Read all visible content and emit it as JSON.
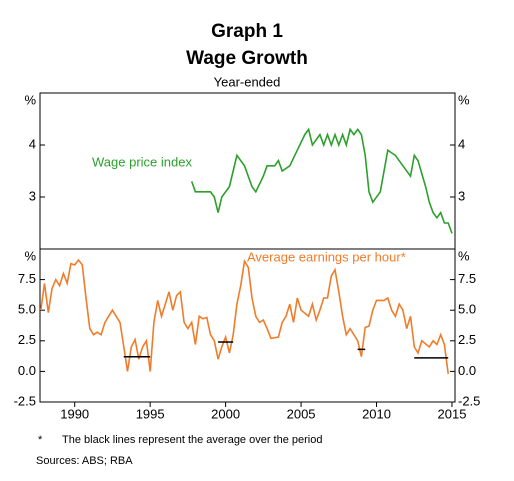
{
  "header": {
    "title": "Graph 1",
    "subtitle": "Wage Growth",
    "note": "Year-ended"
  },
  "chart_data": [
    {
      "type": "line",
      "y_unit": "%",
      "xlim": [
        1987.7,
        2015.2
      ],
      "ylim": [
        2,
        5
      ],
      "yticks": [
        3,
        4
      ],
      "series": [
        {
          "name": "Wage price index",
          "color": "#2ca02c",
          "x": [
            1997.75,
            1998,
            1998.5,
            1999,
            1999.25,
            1999.5,
            1999.75,
            2000.25,
            2000.75,
            2001.25,
            2001.75,
            2002,
            2002.5,
            2002.75,
            2003.25,
            2003.5,
            2003.75,
            2004.25,
            2004.75,
            2005.25,
            2005.5,
            2005.75,
            2006.25,
            2006.5,
            2006.75,
            2007,
            2007.25,
            2007.5,
            2007.75,
            2008,
            2008.25,
            2008.5,
            2008.75,
            2009,
            2009.25,
            2009.5,
            2009.75,
            2010.25,
            2010.75,
            2011.25,
            2011.75,
            2012.25,
            2012.5,
            2012.75,
            2013.25,
            2013.5,
            2013.75,
            2014,
            2014.25,
            2014.5,
            2014.75,
            2015
          ],
          "values": [
            3.3,
            3.1,
            3.1,
            3.1,
            3.0,
            2.7,
            3.0,
            3.2,
            3.8,
            3.6,
            3.2,
            3.1,
            3.4,
            3.6,
            3.6,
            3.7,
            3.5,
            3.6,
            3.9,
            4.2,
            4.3,
            4.0,
            4.2,
            4.0,
            4.2,
            4.0,
            4.2,
            4.0,
            4.2,
            4.0,
            4.3,
            4.2,
            4.3,
            4.2,
            3.8,
            3.1,
            2.9,
            3.1,
            3.9,
            3.8,
            3.6,
            3.4,
            3.8,
            3.7,
            3.2,
            2.9,
            2.7,
            2.6,
            2.7,
            2.5,
            2.5,
            2.3
          ]
        }
      ]
    },
    {
      "type": "line",
      "y_unit": "%",
      "xlim": [
        1987.7,
        2015.2
      ],
      "ylim": [
        -2.5,
        10
      ],
      "yticks": [
        -2.5,
        {
          "value": 0,
          "label": "0.0"
        },
        2.5,
        {
          "value": 5,
          "label": "5.0"
        },
        7.5
      ],
      "xticks": [
        1990,
        1995,
        2000,
        2005,
        2010,
        2015
      ],
      "series": [
        {
          "name": "Average earnings per hour*",
          "color": "#f07c2a",
          "x": [
            1987.75,
            1988,
            1988.25,
            1988.5,
            1988.75,
            1989,
            1989.25,
            1989.5,
            1989.75,
            1990,
            1990.25,
            1990.5,
            1990.75,
            1991,
            1991.25,
            1991.5,
            1991.75,
            1992,
            1992.5,
            1992.75,
            1993,
            1993.25,
            1993.5,
            1993.75,
            1994,
            1994.25,
            1994.5,
            1994.75,
            1995,
            1995.25,
            1995.5,
            1995.75,
            1996,
            1996.25,
            1996.5,
            1996.75,
            1997,
            1997.25,
            1997.5,
            1997.75,
            1998,
            1998.25,
            1998.5,
            1998.75,
            1999,
            1999.25,
            1999.5,
            1999.75,
            2000,
            2000.25,
            2000.5,
            2000.75,
            2001,
            2001.25,
            2001.5,
            2001.75,
            2002,
            2002.25,
            2002.5,
            2002.75,
            2003,
            2003.5,
            2003.75,
            2004,
            2004.25,
            2004.5,
            2004.75,
            2005,
            2005.5,
            2005.75,
            2006,
            2006.25,
            2006.5,
            2006.75,
            2007,
            2007.25,
            2007.5,
            2007.75,
            2008,
            2008.25,
            2008.5,
            2008.75,
            2009,
            2009.25,
            2009.5,
            2009.75,
            2010,
            2010.5,
            2010.75,
            2011,
            2011.25,
            2011.5,
            2011.75,
            2012,
            2012.25,
            2012.5,
            2012.75,
            2013,
            2013.5,
            2013.75,
            2014,
            2014.25,
            2014.5,
            2014.75
          ],
          "values": [
            5.0,
            7.2,
            4.8,
            6.8,
            7.5,
            7.0,
            8.0,
            7.2,
            8.8,
            8.7,
            9.1,
            8.7,
            6.0,
            3.5,
            3.0,
            3.2,
            3.0,
            4.0,
            5.0,
            4.5,
            4.0,
            2.0,
            0.0,
            2.0,
            2.6,
            1.0,
            2.0,
            2.5,
            0.0,
            4.0,
            5.8,
            4.5,
            5.5,
            6.5,
            5.0,
            6.2,
            6.5,
            4.0,
            3.5,
            4.0,
            2.2,
            4.5,
            4.3,
            4.4,
            3.0,
            2.5,
            1.0,
            2.0,
            2.8,
            1.5,
            3.0,
            5.5,
            7.0,
            9.0,
            8.5,
            6.0,
            4.5,
            4.0,
            4.2,
            3.5,
            2.7,
            2.8,
            4.0,
            4.5,
            5.5,
            4.0,
            6.0,
            5.0,
            4.5,
            5.5,
            4.2,
            5.0,
            6.0,
            6.0,
            7.8,
            8.3,
            6.5,
            4.5,
            3.0,
            3.5,
            3.0,
            2.5,
            1.2,
            3.6,
            3.7,
            5.0,
            5.8,
            5.8,
            6.0,
            5.0,
            4.5,
            5.5,
            5.0,
            3.5,
            4.5,
            2.0,
            1.5,
            2.5,
            2.0,
            2.5,
            2.2,
            3.0,
            2.2,
            -0.2
          ]
        }
      ],
      "average_lines": [
        {
          "x": [
            1993.25,
            1995
          ],
          "value": 1.2
        },
        {
          "x": [
            1999.5,
            2000.5
          ],
          "value": 2.4
        },
        {
          "x": [
            2008.75,
            2009.25
          ],
          "value": 1.8
        },
        {
          "x": [
            2012.5,
            2014.75
          ],
          "value": 1.1
        }
      ]
    }
  ],
  "footer": {
    "marker": "*",
    "note": "The black lines represent the average over the period",
    "sources": "Sources:  ABS; RBA"
  }
}
